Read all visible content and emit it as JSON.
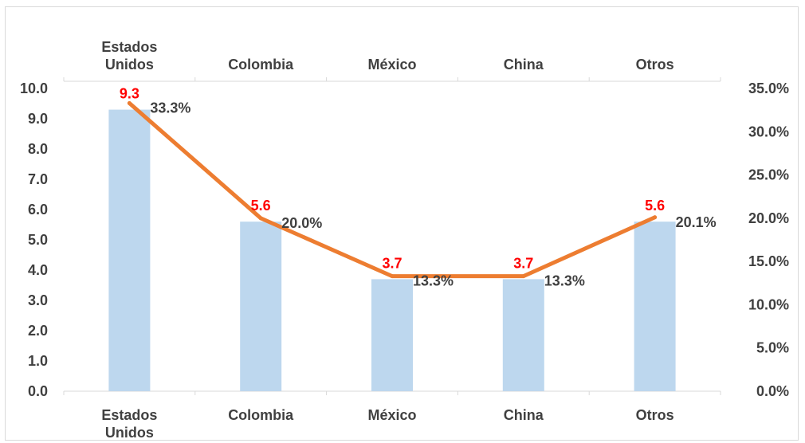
{
  "chart_data": {
    "type": "bar+line",
    "categories": [
      "Estados Unidos",
      "Colombia",
      "México",
      "China",
      "Otros"
    ],
    "series": [
      {
        "type": "bar",
        "axis": "left",
        "values": [
          9.3,
          5.6,
          3.7,
          3.7,
          5.6
        ],
        "labels": [
          "9.3",
          "5.6",
          "3.7",
          "3.7",
          "5.6"
        ],
        "color": "#bdd7ee",
        "label_color": "#ff0000"
      },
      {
        "type": "line",
        "axis": "right",
        "values": [
          33.3,
          20.0,
          13.3,
          13.3,
          20.1
        ],
        "labels": [
          "33.3%",
          "20.0%",
          "13.3%",
          "13.3%",
          "20.1%"
        ],
        "color": "#ed7d31",
        "label_color": "#404040"
      }
    ],
    "y_left": {
      "ylim": [
        0,
        10
      ],
      "ticks": [
        "0.0",
        "1.0",
        "2.0",
        "3.0",
        "4.0",
        "5.0",
        "6.0",
        "7.0",
        "8.0",
        "9.0",
        "10.0"
      ]
    },
    "y_right": {
      "ylim": [
        0,
        35
      ],
      "ticks": [
        "0.0%",
        "5.0%",
        "10.0%",
        "15.0%",
        "20.0%",
        "25.0%",
        "30.0%",
        "35.0%"
      ]
    },
    "category_labels_top": true,
    "category_labels_bottom": true,
    "grid": false,
    "legend": "none",
    "axis_text_color": "#404040",
    "axis_line_color": "#d9d9d9"
  }
}
